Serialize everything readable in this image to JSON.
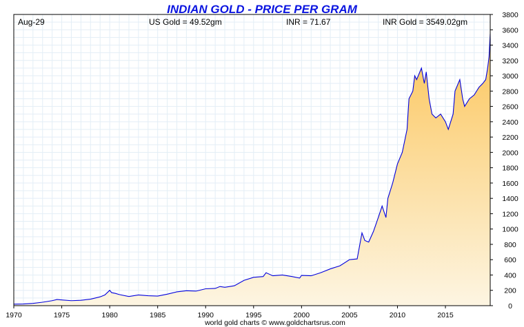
{
  "chart_data": {
    "type": "area",
    "title": "INDIAN GOLD - PRICE PER GRAM",
    "xlabel": "",
    "ylabel": "",
    "header": {
      "date": "Aug-29",
      "us_gold": "US Gold = 49.52gm",
      "inr": "INR = 71.67",
      "inr_gold": "INR Gold = 3549.02gm"
    },
    "footer": "world gold charts © www.goldchartsrus.com",
    "xlim": [
      1970,
      2019.67
    ],
    "ylim": [
      0,
      3800
    ],
    "x_ticks": [
      1970,
      1975,
      1980,
      1985,
      1990,
      1995,
      2000,
      2005,
      2010,
      2015
    ],
    "y_ticks": [
      0,
      200,
      400,
      600,
      800,
      1000,
      1200,
      1400,
      1600,
      1800,
      2000,
      2200,
      2400,
      2600,
      2800,
      3000,
      3200,
      3400,
      3600,
      3800
    ],
    "grid": true,
    "line_color": "#0000dd",
    "fill_top_color": "#fbc55a",
    "fill_bottom_color": "#fdf5e2",
    "series": [
      {
        "x": [
          1970,
          1971,
          1972,
          1973,
          1974,
          1974.5,
          1975,
          1976,
          1977,
          1978,
          1979,
          1979.5,
          1980,
          1980.2,
          1980.6,
          1981,
          1982,
          1983,
          1984,
          1985,
          1986,
          1987,
          1988,
          1989,
          1990,
          1991,
          1991.5,
          1992,
          1993,
          1994,
          1995,
          1996,
          1996.3,
          1997,
          1998,
          1999,
          1999.8,
          2000,
          2001,
          2002,
          2003,
          2004,
          2005,
          2005.8,
          2006.3,
          2006.6,
          2007,
          2007.5,
          2008,
          2008.4,
          2008.8,
          2009,
          2009.5,
          2010,
          2010.5,
          2011,
          2011.2,
          2011.6,
          2011.8,
          2012,
          2012.5,
          2012.8,
          2013,
          2013.3,
          2013.6,
          2014,
          2014.5,
          2015,
          2015.3,
          2015.8,
          2016,
          2016.5,
          2016.8,
          2017,
          2017.5,
          2018,
          2018.5,
          2018.9,
          2019.2,
          2019.4,
          2019.55,
          2019.67
        ],
        "y": [
          20,
          22,
          30,
          45,
          65,
          80,
          75,
          65,
          70,
          85,
          115,
          140,
          200,
          170,
          160,
          145,
          120,
          140,
          130,
          125,
          150,
          180,
          195,
          190,
          220,
          225,
          250,
          240,
          260,
          330,
          370,
          380,
          430,
          390,
          400,
          380,
          360,
          395,
          390,
          430,
          480,
          520,
          600,
          610,
          950,
          850,
          830,
          970,
          1150,
          1300,
          1150,
          1400,
          1600,
          1850,
          2000,
          2300,
          2700,
          2800,
          3000,
          2950,
          3100,
          2900,
          3050,
          2700,
          2500,
          2450,
          2500,
          2400,
          2300,
          2500,
          2800,
          2950,
          2700,
          2600,
          2700,
          2750,
          2850,
          2900,
          2950,
          3100,
          3250,
          3549
        ]
      }
    ]
  }
}
